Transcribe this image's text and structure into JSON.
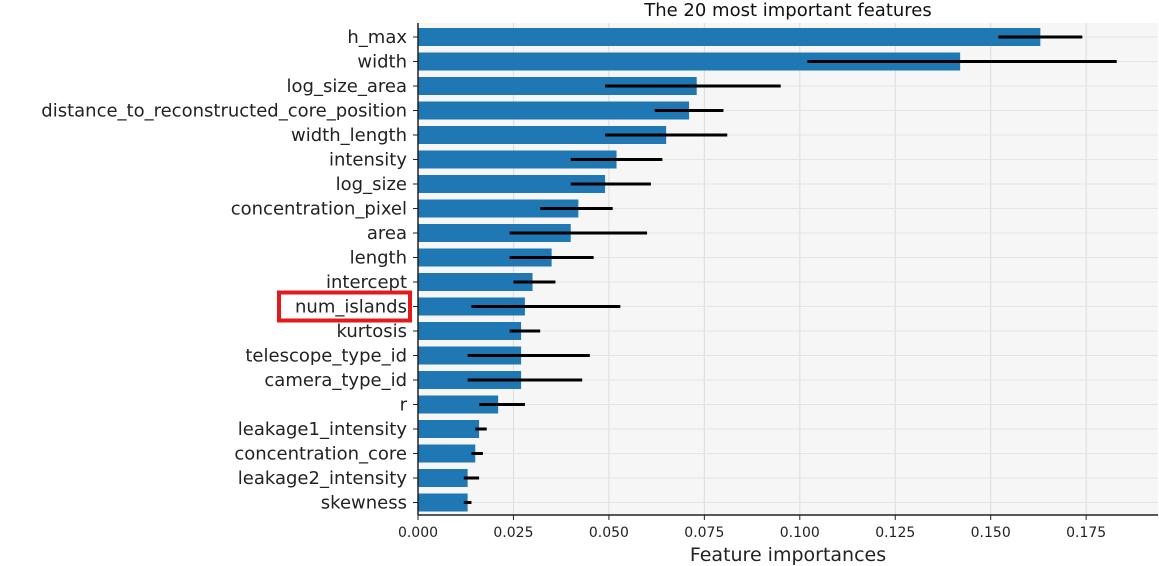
{
  "chart_data": {
    "type": "bar",
    "orientation": "horizontal",
    "title": "The 20 most important features",
    "xlabel": "Feature importances",
    "ylabel": "",
    "xlim": [
      0.0,
      0.192
    ],
    "xticks": [
      0.0,
      0.025,
      0.05,
      0.075,
      0.1,
      0.125,
      0.15,
      0.175
    ],
    "xtick_labels": [
      "0.000",
      "0.025",
      "0.050",
      "0.075",
      "0.100",
      "0.125",
      "0.150",
      "0.175"
    ],
    "grid": true,
    "bar_color": "#1f77b4",
    "error_color": "#000000",
    "highlight_color": "#e31a1c",
    "highlighted_category": "num_islands",
    "categories": [
      "h_max",
      "width",
      "log_size_area",
      "distance_to_reconstructed_core_position",
      "width_length",
      "intensity",
      "log_size",
      "concentration_pixel",
      "area",
      "length",
      "intercept",
      "num_islands",
      "kurtosis",
      "telescope_type_id",
      "camera_type_id",
      "r",
      "leakage1_intensity",
      "concentration_core",
      "leakage2_intensity",
      "skewness"
    ],
    "values": [
      0.163,
      0.142,
      0.073,
      0.071,
      0.065,
      0.052,
      0.049,
      0.042,
      0.04,
      0.035,
      0.03,
      0.028,
      0.027,
      0.027,
      0.027,
      0.021,
      0.016,
      0.015,
      0.013,
      0.013
    ],
    "error_low": [
      0.152,
      0.102,
      0.049,
      0.062,
      0.049,
      0.04,
      0.04,
      0.032,
      0.024,
      0.024,
      0.025,
      0.014,
      0.024,
      0.013,
      0.013,
      0.016,
      0.015,
      0.014,
      0.012,
      0.012
    ],
    "error_high": [
      0.174,
      0.183,
      0.095,
      0.08,
      0.081,
      0.064,
      0.061,
      0.051,
      0.06,
      0.046,
      0.036,
      0.053,
      0.032,
      0.045,
      0.043,
      0.028,
      0.018,
      0.017,
      0.016,
      0.014
    ]
  }
}
